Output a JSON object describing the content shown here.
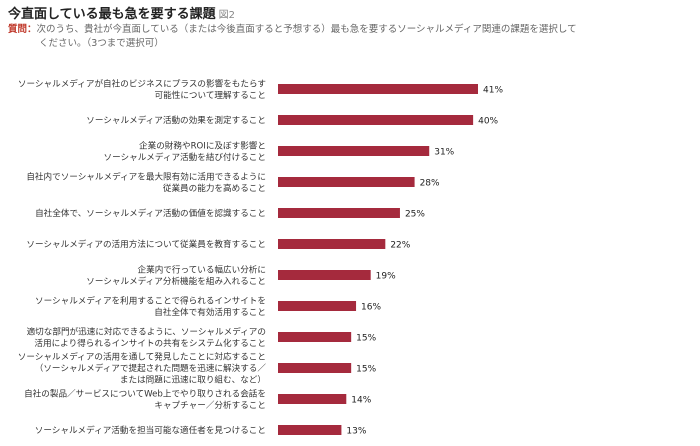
{
  "header": {
    "title": "今直面している最も急を要する課題",
    "figure": "図2",
    "question_label": "質問：",
    "question_line1": "次のうち、貴社が今直面している（または今後直面すると予想する）最も急を要するソーシャルメディア関連の課題を選択して",
    "question_line2": "ください。（3つまで選択可）"
  },
  "chart_data": {
    "type": "bar",
    "orientation": "horizontal",
    "bar_color": "#a52a3d",
    "categories": [
      [
        "ソーシャルメディアが自社のビジネスにプラスの影響をもたらす",
        "可能性について理解すること"
      ],
      [
        "ソーシャルメディア活動の効果を測定すること"
      ],
      [
        "企業の財務やROIに及ぼす影響と",
        "ソーシャルメディア活動を結び付けること"
      ],
      [
        "自社内でソーシャルメディアを最大限有効に活用できるように",
        "従業員の能力を高めること"
      ],
      [
        "自社全体で、ソーシャルメディア活動の価値を認識すること"
      ],
      [
        "ソーシャルメディアの活用方法について従業員を教育すること"
      ],
      [
        "企業内で行っている幅広い分析に",
        "ソーシャルメディア分析機能を組み入れること"
      ],
      [
        "ソーシャルメディアを利用することで得られるインサイトを",
        "自社全体で有効活用すること"
      ],
      [
        "適切な部門が迅速に対応できるように、ソーシャルメディアの",
        "活用により得られるインサイトの共有をシステム化すること"
      ],
      [
        "ソーシャルメディアの活用を通して発見したことに対応すること",
        "（ソーシャルメディアで提起された問題を迅速に解決する／",
        "または問題に迅速に取り組む、など）"
      ],
      [
        "自社の製品／サービスについてWeb上でやり取りされる会話を",
        "キャプチャー／分析すること"
      ],
      [
        "ソーシャルメディア活動を担当可能な適任者を見つけること"
      ]
    ],
    "values": [
      41,
      40,
      31,
      28,
      25,
      22,
      19,
      16,
      15,
      15,
      14,
      13
    ],
    "value_labels": [
      "41%",
      "40%",
      "31%",
      "28%",
      "25%",
      "22%",
      "19%",
      "16%",
      "15%",
      "15%",
      "14%",
      "13%"
    ],
    "unit": "%",
    "xlim": [
      0,
      41
    ]
  }
}
